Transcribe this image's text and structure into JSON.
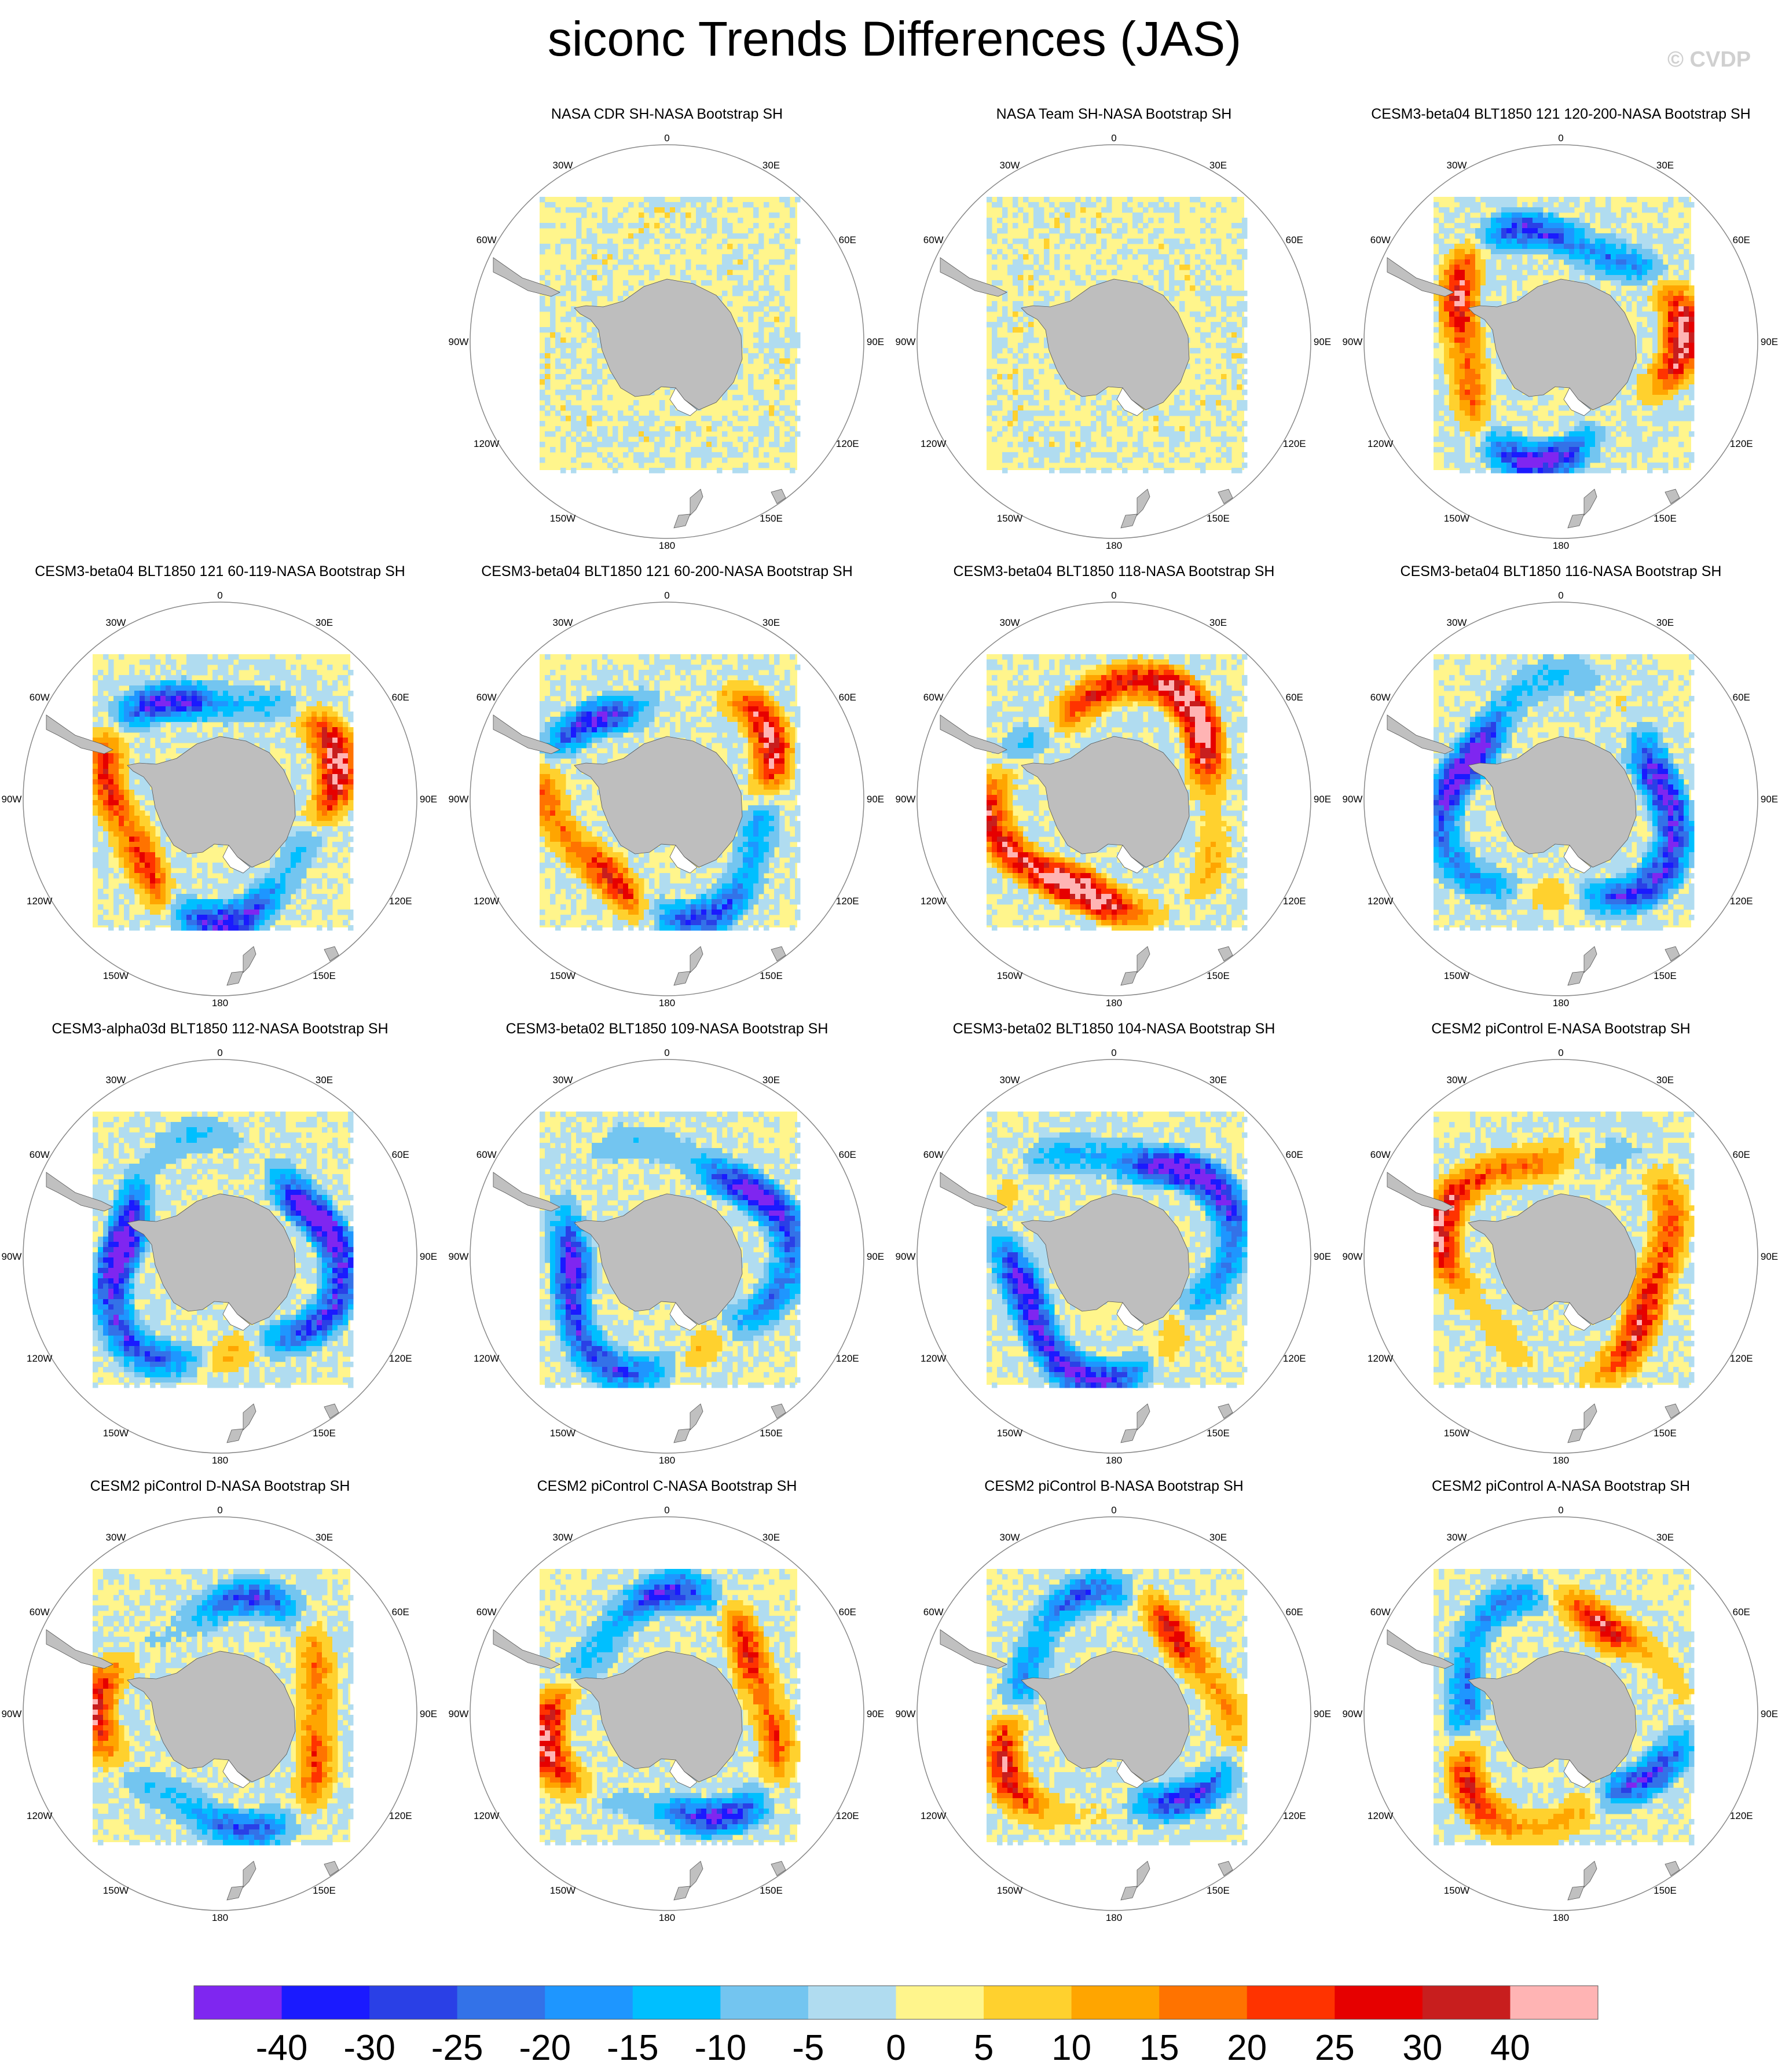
{
  "title": "siconc Trends Differences (JAS)",
  "watermark": "© CVDP",
  "panels": [
    {
      "title": "NASA CDR SH-NASA Bootstrap SH",
      "pattern": "small",
      "amp": 0.5
    },
    {
      "title": "NASA Team SH-NASA Bootstrap SH",
      "pattern": "small",
      "amp": 0.6
    },
    {
      "title": "CESM3-beta04 BLT1850 121 120-200-NASA Bootstrap SH",
      "pattern": "mixed",
      "amp": 1.0
    },
    {
      "title": "CESM3-beta04 BLT1850 121 60-119-NASA Bootstrap SH",
      "pattern": "mixed",
      "amp": 1.0
    },
    {
      "title": "CESM3-beta04 BLT1850 121 60-200-NASA Bootstrap SH",
      "pattern": "mixed",
      "amp": 0.9
    },
    {
      "title": "CESM3-beta04 BLT1850 118-NASA Bootstrap SH",
      "pattern": "warm",
      "amp": 1.2
    },
    {
      "title": "CESM3-beta04 BLT1850 116-NASA Bootstrap SH",
      "pattern": "cold",
      "amp": 1.1
    },
    {
      "title": "CESM3-alpha03d BLT1850 112-NASA Bootstrap SH",
      "pattern": "cold",
      "amp": 1.2
    },
    {
      "title": "CESM3-beta02 BLT1850 109-NASA Bootstrap SH",
      "pattern": "cold",
      "amp": 1.0
    },
    {
      "title": "CESM3-beta02 BLT1850 104-NASA Bootstrap SH",
      "pattern": "cold",
      "amp": 1.2
    },
    {
      "title": "CESM2 piControl E-NASA Bootstrap SH",
      "pattern": "warm",
      "amp": 0.8
    },
    {
      "title": "CESM2 piControl D-NASA Bootstrap SH",
      "pattern": "mixed",
      "amp": 0.7
    },
    {
      "title": "CESM2 piControl C-NASA Bootstrap SH",
      "pattern": "mixed",
      "amp": 0.9
    },
    {
      "title": "CESM2 piControl B-NASA Bootstrap SH",
      "pattern": "mixed",
      "amp": 0.8
    },
    {
      "title": "CESM2 piControl A-NASA Bootstrap SH",
      "pattern": "mixed",
      "amp": 0.8
    }
  ],
  "map_labels": [
    "0",
    "30E",
    "60E",
    "90E",
    "120E",
    "150E",
    "180",
    "150W",
    "120W",
    "90W",
    "60W",
    "30W"
  ],
  "colorbar": {
    "colors": [
      "#7f26f0",
      "#1a1aff",
      "#2a40e6",
      "#3372e8",
      "#1e96ff",
      "#00bfff",
      "#73c5f0",
      "#b0dcf0",
      "#fff58c",
      "#ffd12e",
      "#ffa500",
      "#ff7300",
      "#ff3300",
      "#e60000",
      "#c81e1e",
      "#ffb4b4"
    ],
    "ticks": [
      "-40",
      "-30",
      "-25",
      "-20",
      "-15",
      "-10",
      "-5",
      "0",
      "5",
      "10",
      "15",
      "20",
      "25",
      "30",
      "40"
    ]
  }
}
